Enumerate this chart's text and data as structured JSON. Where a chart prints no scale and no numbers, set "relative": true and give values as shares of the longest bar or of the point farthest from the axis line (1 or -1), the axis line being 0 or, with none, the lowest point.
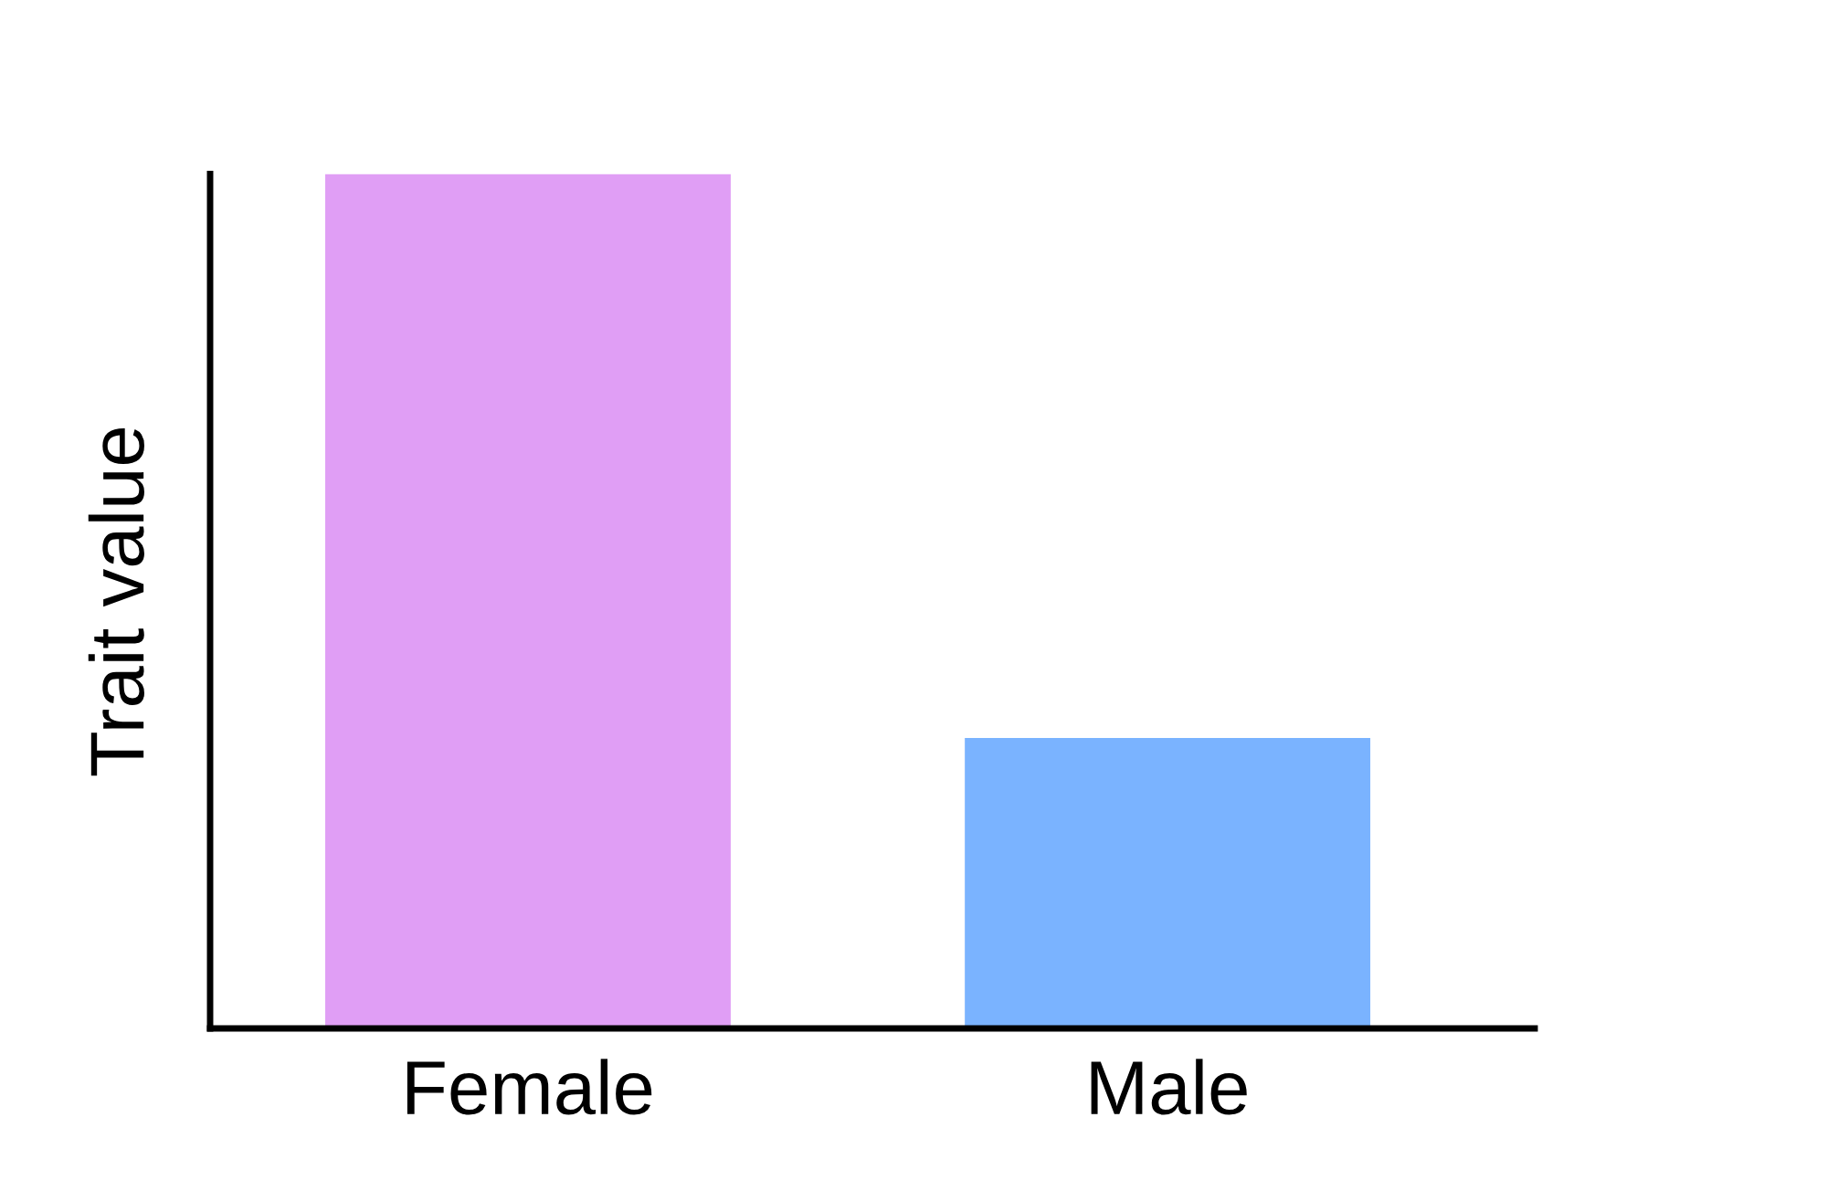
{
  "chart_data": {
    "type": "bar",
    "relative": true,
    "ylabel": "Trait value",
    "categories": [
      "Female",
      "Male"
    ],
    "values": [
      1,
      0.34
    ],
    "colors": [
      "#e09ef5",
      "#7ab3ff"
    ],
    "grid": false,
    "legend": false
  }
}
